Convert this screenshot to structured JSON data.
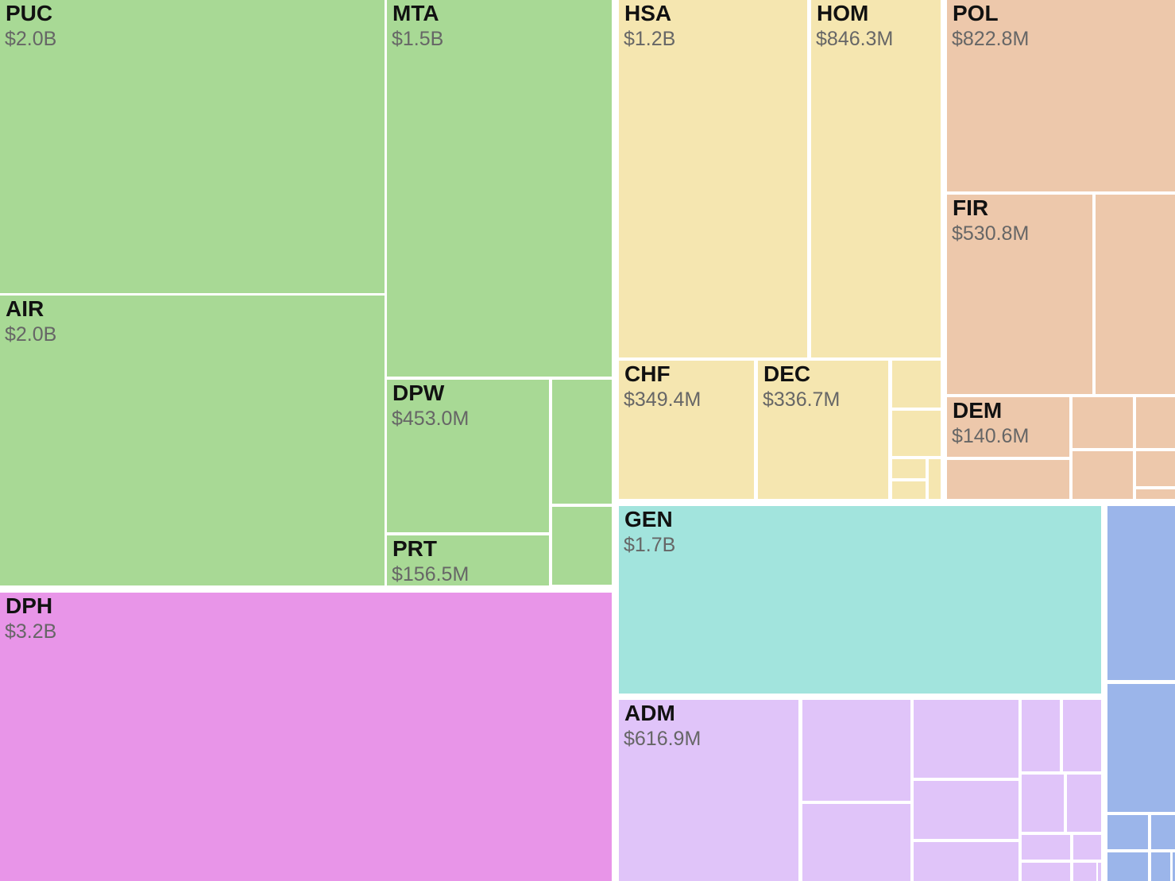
{
  "chart_data": {
    "type": "treemap",
    "title": "",
    "units": "USD",
    "groups": [
      {
        "name": "green",
        "color": "#a8d995",
        "items": [
          {
            "code": "PUC",
            "label": "$2.0B",
            "value": 2000
          },
          {
            "code": "AIR",
            "label": "$2.0B",
            "value": 2000
          },
          {
            "code": "MTA",
            "label": "$1.5B",
            "value": 1500
          },
          {
            "code": "DPW",
            "label": "$453.0M",
            "value": 453.0
          },
          {
            "code": "PRT",
            "label": "$156.5M",
            "value": 156.5
          },
          {
            "code": "",
            "label": "",
            "value": 140
          },
          {
            "code": "",
            "label": "",
            "value": 85
          }
        ]
      },
      {
        "name": "magenta",
        "color": "#e895e8",
        "items": [
          {
            "code": "DPH",
            "label": "$3.2B",
            "value": 3200
          }
        ]
      },
      {
        "name": "yellow",
        "color": "#f5e6b0",
        "items": [
          {
            "code": "HSA",
            "label": "$1.2B",
            "value": 1200
          },
          {
            "code": "HOM",
            "label": "$846.3M",
            "value": 846.3
          },
          {
            "code": "CHF",
            "label": "$349.4M",
            "value": 349.4
          },
          {
            "code": "DEC",
            "label": "$336.7M",
            "value": 336.7
          },
          {
            "code": "",
            "label": "",
            "value": 70
          },
          {
            "code": "",
            "label": "",
            "value": 70
          },
          {
            "code": "",
            "label": "",
            "value": 30
          },
          {
            "code": "",
            "label": "",
            "value": 28
          },
          {
            "code": "",
            "label": "",
            "value": 20
          }
        ]
      },
      {
        "name": "peach",
        "color": "#edc8ab",
        "items": [
          {
            "code": "POL",
            "label": "$822.8M",
            "value": 822.8
          },
          {
            "code": "FIR",
            "label": "$530.8M",
            "value": 530.8
          },
          {
            "code": "",
            "label": "",
            "value": 325
          },
          {
            "code": "DEM",
            "label": "$140.6M",
            "value": 140.6
          },
          {
            "code": "",
            "label": "",
            "value": 85
          },
          {
            "code": "",
            "label": "",
            "value": 70
          },
          {
            "code": "",
            "label": "",
            "value": 70
          },
          {
            "code": "",
            "label": "",
            "value": 54
          },
          {
            "code": "",
            "label": "",
            "value": 38
          },
          {
            "code": "",
            "label": "",
            "value": 20
          },
          {
            "code": "",
            "label": "",
            "value": 15
          }
        ]
      },
      {
        "name": "teal",
        "color": "#a2e4dd",
        "items": [
          {
            "code": "GEN",
            "label": "$1.7B",
            "value": 1700
          }
        ]
      },
      {
        "name": "lavender",
        "color": "#e0c4f9",
        "items": [
          {
            "code": "ADM",
            "label": "$616.9M",
            "value": 616.9
          },
          {
            "code": "",
            "label": "",
            "value": 200
          },
          {
            "code": "",
            "label": "",
            "value": 150
          },
          {
            "code": "",
            "label": "",
            "value": 150
          },
          {
            "code": "",
            "label": "",
            "value": 110
          },
          {
            "code": "",
            "label": "",
            "value": 90
          },
          {
            "code": "",
            "label": "",
            "value": 80
          },
          {
            "code": "",
            "label": "",
            "value": 50
          },
          {
            "code": "",
            "label": "",
            "value": 50
          },
          {
            "code": "",
            "label": "",
            "value": 45
          },
          {
            "code": "",
            "label": "",
            "value": 45
          },
          {
            "code": "",
            "label": "",
            "value": 28
          },
          {
            "code": "",
            "label": "",
            "value": 17
          },
          {
            "code": "",
            "label": "",
            "value": 15
          },
          {
            "code": "",
            "label": "",
            "value": 11
          }
        ]
      },
      {
        "name": "blue",
        "color": "#9bb5ea",
        "items": [
          {
            "code": "",
            "label": "",
            "value": 500
          },
          {
            "code": "",
            "label": "",
            "value": 400
          },
          {
            "code": "",
            "label": "",
            "value": 100
          },
          {
            "code": "",
            "label": "",
            "value": 65
          },
          {
            "code": "",
            "label": "",
            "value": 55
          },
          {
            "code": "",
            "label": "",
            "value": 55
          },
          {
            "code": "",
            "label": "",
            "value": 30
          }
        ]
      }
    ]
  }
}
